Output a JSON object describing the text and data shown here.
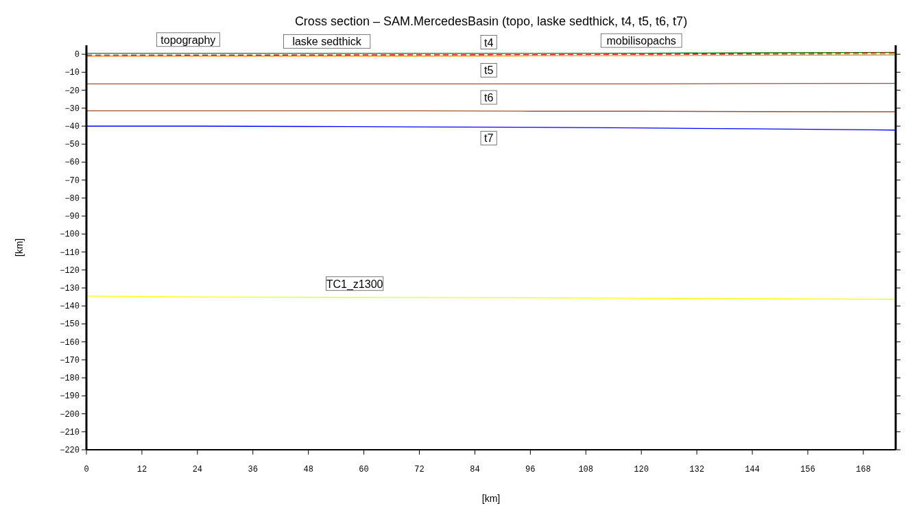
{
  "chart_data": {
    "type": "line",
    "title": "Cross section – SAM.MercedesBasin (topo, laske sedthick, t4, t5, t6, t7)",
    "xlabel": "[km]",
    "ylabel": "[km]",
    "xlim": [
      0,
      175
    ],
    "ylim": [
      -220,
      5
    ],
    "xticks": [
      0,
      12,
      24,
      36,
      48,
      60,
      72,
      84,
      96,
      108,
      120,
      132,
      144,
      156,
      168
    ],
    "yticks": [
      0,
      -10,
      -20,
      -30,
      -40,
      -50,
      -60,
      -70,
      -80,
      -90,
      -100,
      -110,
      -120,
      -130,
      -140,
      -150,
      -160,
      -170,
      -180,
      -190,
      -200,
      -210,
      -220
    ],
    "x": [
      0,
      24,
      48,
      72,
      96,
      120,
      144,
      175
    ],
    "series": [
      {
        "name": "topography",
        "color": "#008000",
        "values": [
          0.5,
          0.5,
          0.5,
          0.5,
          0.5,
          0.6,
          0.8,
          1
        ]
      },
      {
        "name": "laske sedthick",
        "color": "#ff0000",
        "line_style": "dashed",
        "values": [
          -0.8,
          -0.6,
          -0.5,
          -0.3,
          -0.2,
          0,
          0.3,
          0.8
        ]
      },
      {
        "name": "mobilisopachs",
        "color": "#a0a0a0",
        "line_style": "dashed",
        "values": [
          -0.3,
          -0.3,
          -0.3,
          -0.3,
          -0.2,
          null,
          -0.1,
          0
        ]
      },
      {
        "name": "t4",
        "color": "#ff8c00",
        "values": [
          -1,
          -1,
          -1,
          -1,
          -0.9,
          -0.8,
          -0.6,
          -0.4
        ]
      },
      {
        "name": "t5",
        "color": "#a0522d",
        "values": [
          -16.5,
          -16.5,
          -16.5,
          -16.5,
          -16.5,
          -16.5,
          -16.3,
          -16.2
        ]
      },
      {
        "name": "t6",
        "color": "#a0522d",
        "values": [
          -31.5,
          -31.5,
          -31.5,
          -31.5,
          -31.7,
          -31.7,
          -31.9,
          -32
        ]
      },
      {
        "name": "t7",
        "color": "#0000ff",
        "values": [
          -40,
          -40,
          -40.2,
          -40.4,
          -40.6,
          -41,
          -41.5,
          -42.2
        ]
      },
      {
        "name": "TC1_z1300",
        "color": "#ffff00",
        "values": [
          -134.5,
          -135,
          -135.2,
          -135.3,
          -135.5,
          -135.8,
          -136,
          -136.3
        ]
      }
    ],
    "grid": false
  }
}
